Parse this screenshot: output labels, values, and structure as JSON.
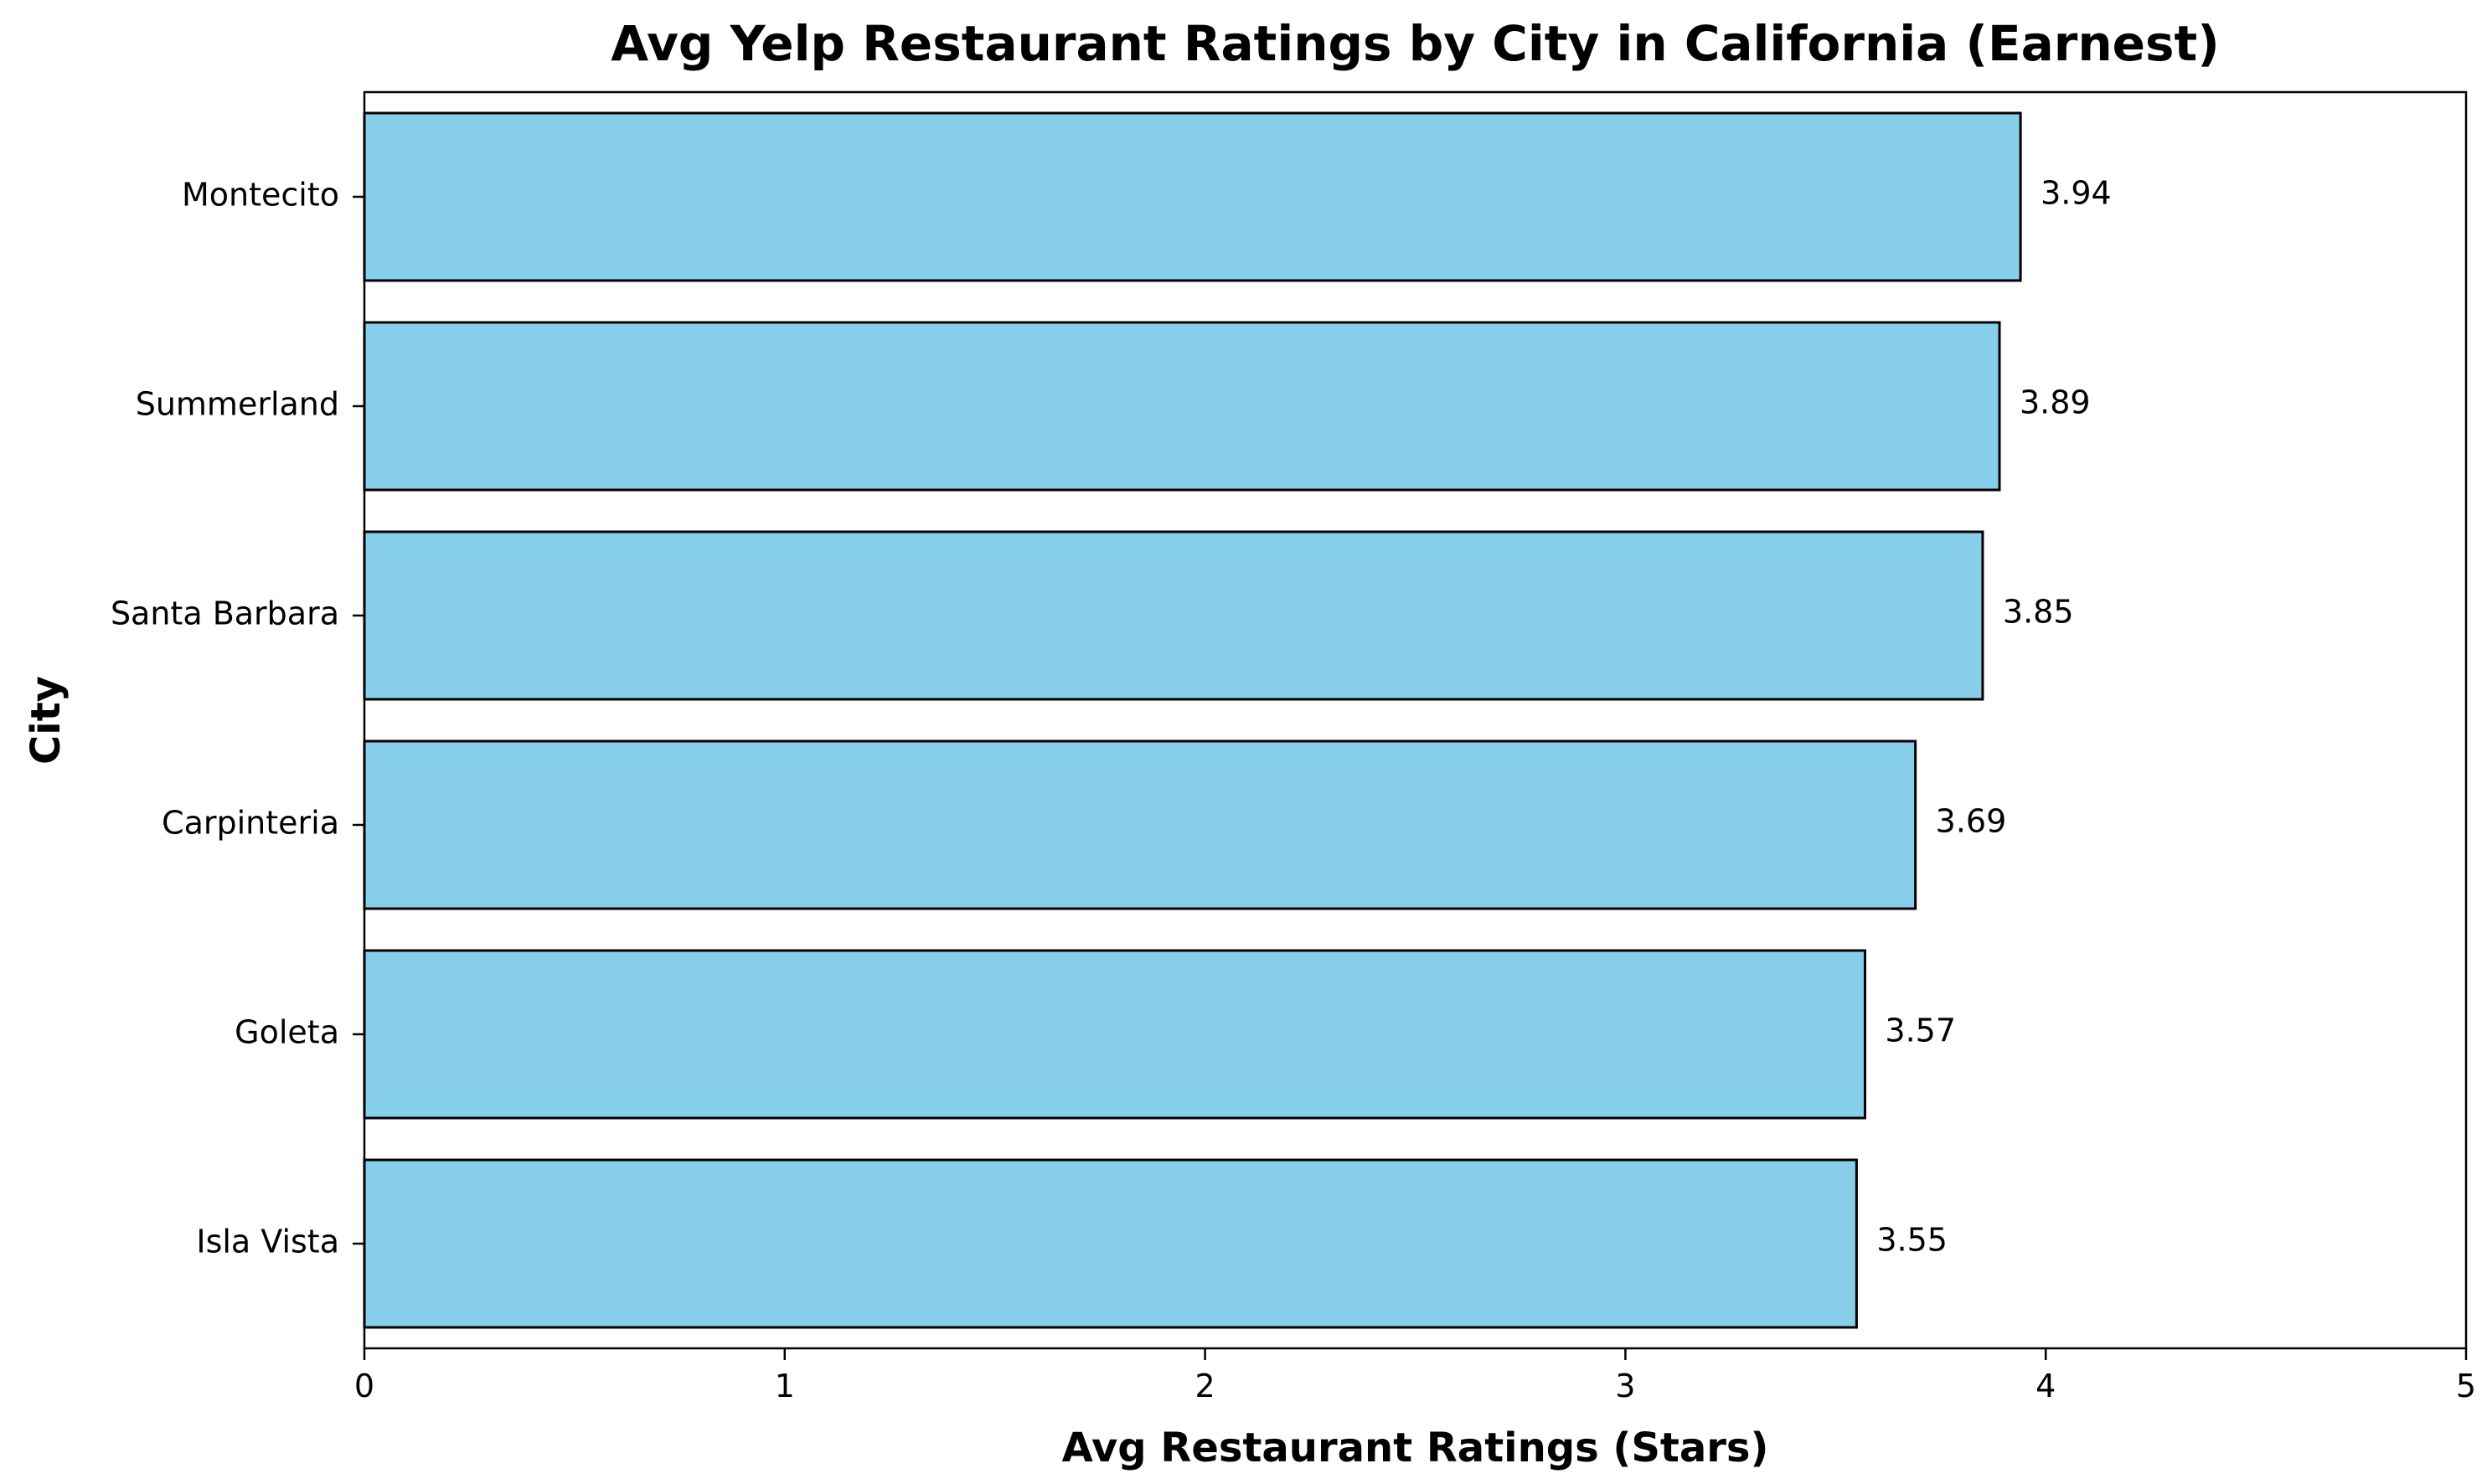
{
  "chart_data": {
    "type": "bar",
    "orientation": "horizontal",
    "title": "Avg Yelp Restaurant Ratings by City in California (Earnest)",
    "xlabel": "Avg Restaurant Ratings (Stars)",
    "ylabel": "City",
    "xlim": [
      0,
      5
    ],
    "xticks": [
      "0",
      "1",
      "2",
      "3",
      "4",
      "5"
    ],
    "categories": [
      "Montecito",
      "Summerland",
      "Santa Barbara",
      "Carpinteria",
      "Goleta",
      "Isla Vista"
    ],
    "values": [
      3.94,
      3.89,
      3.85,
      3.69,
      3.57,
      3.55
    ],
    "value_labels": [
      "3.94",
      "3.89",
      "3.85",
      "3.69",
      "3.57",
      "3.55"
    ],
    "bar_color": "#87CEEB",
    "edge_color": "#000000",
    "grid": false,
    "legend": "none"
  }
}
